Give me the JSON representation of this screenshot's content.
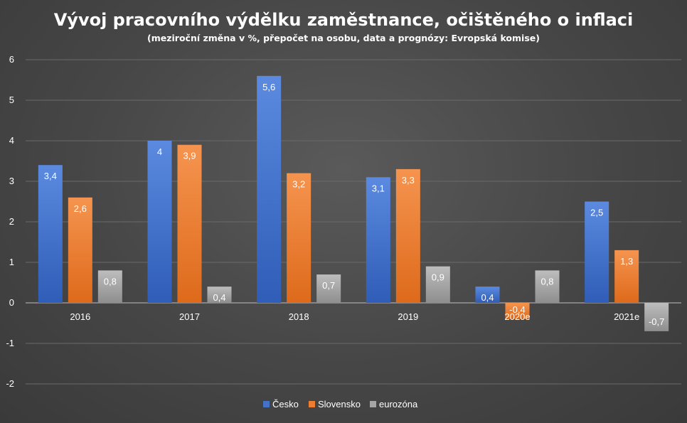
{
  "chart_data": {
    "type": "bar",
    "title": "Vývoj pracovního výdělku zaměstnance, očištěného o inflaci",
    "subtitle": "(meziroční změna v %, přepočet na osobu, data a prognózy: Evropská komise)",
    "categories": [
      "2016",
      "2017",
      "2018",
      "2019",
      "2020e",
      "2021e"
    ],
    "series": [
      {
        "name": "Česko",
        "values": [
          3.4,
          4,
          5.6,
          3.1,
          0.4,
          2.5
        ],
        "labels": [
          "3,4",
          "4",
          "5,6",
          "3,1",
          "0,4",
          "2,5"
        ],
        "color": "#4472c4"
      },
      {
        "name": "Slovensko",
        "values": [
          2.6,
          3.9,
          3.2,
          3.3,
          -0.4,
          1.3
        ],
        "labels": [
          "2,6",
          "3,9",
          "3,2",
          "3,3",
          "-0,4",
          "1,3"
        ],
        "color": "#ed7d31"
      },
      {
        "name": "eurozóna",
        "values": [
          0.8,
          0.4,
          0.7,
          0.9,
          0.8,
          -0.7
        ],
        "labels": [
          "0,8",
          "0,4",
          "0,7",
          "0,9",
          "0,8",
          "-0,7"
        ],
        "color": "#a5a5a5"
      }
    ],
    "yticks": [
      "6",
      "5",
      "4",
      "3",
      "2",
      "1",
      "0",
      "-1",
      "-2"
    ],
    "ylim": [
      -2,
      6
    ],
    "grid": true,
    "legend": "bottom-center"
  }
}
